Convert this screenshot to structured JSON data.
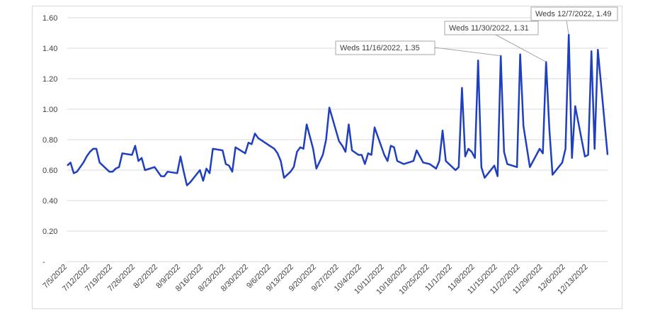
{
  "chart_data": {
    "type": "line",
    "line_color": "#1f3fbf",
    "grid": true,
    "grid_color": "#d9d9d9",
    "ylim": [
      0,
      1.6
    ],
    "yticks": [
      {
        "value": 0,
        "label": "-"
      },
      {
        "value": 0.2,
        "label": "0.20"
      },
      {
        "value": 0.4,
        "label": "0.40"
      },
      {
        "value": 0.6,
        "label": "0.60"
      },
      {
        "value": 0.8,
        "label": "0.80"
      },
      {
        "value": 1.0,
        "label": "1.00"
      },
      {
        "value": 1.2,
        "label": "1.20"
      },
      {
        "value": 1.4,
        "label": "1.40"
      },
      {
        "value": 1.6,
        "label": "1.60"
      }
    ],
    "xlim": [
      "2022-07-05",
      "2022-12-19"
    ],
    "xticks": [
      {
        "date": "2022-07-05",
        "label": "7/5/2022"
      },
      {
        "date": "2022-07-12",
        "label": "7/12/2022"
      },
      {
        "date": "2022-07-19",
        "label": "7/19/2022"
      },
      {
        "date": "2022-07-26",
        "label": "7/26/2022"
      },
      {
        "date": "2022-08-02",
        "label": "8/2/2022"
      },
      {
        "date": "2022-08-09",
        "label": "8/9/2022"
      },
      {
        "date": "2022-08-16",
        "label": "8/16/2022"
      },
      {
        "date": "2022-08-23",
        "label": "8/23/2022"
      },
      {
        "date": "2022-08-30",
        "label": "8/30/2022"
      },
      {
        "date": "2022-09-06",
        "label": "9/6/2022"
      },
      {
        "date": "2022-09-13",
        "label": "9/13/2022"
      },
      {
        "date": "2022-09-20",
        "label": "9/20/2022"
      },
      {
        "date": "2022-09-27",
        "label": "9/27/2022"
      },
      {
        "date": "2022-10-04",
        "label": "10/4/2022"
      },
      {
        "date": "2022-10-11",
        "label": "10/11/2022"
      },
      {
        "date": "2022-10-18",
        "label": "10/18/2022"
      },
      {
        "date": "2022-10-25",
        "label": "10/25/2022"
      },
      {
        "date": "2022-11-01",
        "label": "11/1/2022"
      },
      {
        "date": "2022-11-08",
        "label": "11/8/2022"
      },
      {
        "date": "2022-11-15",
        "label": "11/15/2022"
      },
      {
        "date": "2022-11-22",
        "label": "11/22/2022"
      },
      {
        "date": "2022-11-29",
        "label": "11/29/2022"
      },
      {
        "date": "2022-12-06",
        "label": "12/6/2022"
      },
      {
        "date": "2022-12-13",
        "label": "12/13/2022"
      }
    ],
    "series": [
      {
        "points": [
          [
            "2022-07-05",
            0.63
          ],
          [
            "2022-07-06",
            0.65
          ],
          [
            "2022-07-07",
            0.58
          ],
          [
            "2022-07-08",
            0.59
          ],
          [
            "2022-07-10",
            0.65
          ],
          [
            "2022-07-11",
            0.69
          ],
          [
            "2022-07-12",
            0.72
          ],
          [
            "2022-07-13",
            0.74
          ],
          [
            "2022-07-14",
            0.74
          ],
          [
            "2022-07-15",
            0.65
          ],
          [
            "2022-07-18",
            0.59
          ],
          [
            "2022-07-19",
            0.59
          ],
          [
            "2022-07-20",
            0.61
          ],
          [
            "2022-07-21",
            0.62
          ],
          [
            "2022-07-22",
            0.71
          ],
          [
            "2022-07-25",
            0.7
          ],
          [
            "2022-07-26",
            0.76
          ],
          [
            "2022-07-27",
            0.66
          ],
          [
            "2022-07-28",
            0.68
          ],
          [
            "2022-07-29",
            0.6
          ],
          [
            "2022-08-01",
            0.62
          ],
          [
            "2022-08-02",
            0.59
          ],
          [
            "2022-08-03",
            0.56
          ],
          [
            "2022-08-04",
            0.56
          ],
          [
            "2022-08-05",
            0.59
          ],
          [
            "2022-08-08",
            0.58
          ],
          [
            "2022-08-09",
            0.69
          ],
          [
            "2022-08-10",
            0.59
          ],
          [
            "2022-08-11",
            0.5
          ],
          [
            "2022-08-12",
            0.52
          ],
          [
            "2022-08-15",
            0.6
          ],
          [
            "2022-08-16",
            0.53
          ],
          [
            "2022-08-17",
            0.61
          ],
          [
            "2022-08-18",
            0.58
          ],
          [
            "2022-08-19",
            0.74
          ],
          [
            "2022-08-22",
            0.73
          ],
          [
            "2022-08-23",
            0.64
          ],
          [
            "2022-08-24",
            0.63
          ],
          [
            "2022-08-25",
            0.59
          ],
          [
            "2022-08-26",
            0.75
          ],
          [
            "2022-08-29",
            0.71
          ],
          [
            "2022-08-30",
            0.78
          ],
          [
            "2022-08-31",
            0.77
          ],
          [
            "2022-09-01",
            0.84
          ],
          [
            "2022-09-02",
            0.81
          ],
          [
            "2022-09-07",
            0.74
          ],
          [
            "2022-09-08",
            0.71
          ],
          [
            "2022-09-09",
            0.66
          ],
          [
            "2022-09-10",
            0.55
          ],
          [
            "2022-09-12",
            0.59
          ],
          [
            "2022-09-13",
            0.62
          ],
          [
            "2022-09-14",
            0.72
          ],
          [
            "2022-09-15",
            0.75
          ],
          [
            "2022-09-16",
            0.74
          ],
          [
            "2022-09-17",
            0.9
          ],
          [
            "2022-09-19",
            0.74
          ],
          [
            "2022-09-20",
            0.61
          ],
          [
            "2022-09-22",
            0.7
          ],
          [
            "2022-09-23",
            0.8
          ],
          [
            "2022-09-24",
            1.01
          ],
          [
            "2022-09-27",
            0.79
          ],
          [
            "2022-09-28",
            0.76
          ],
          [
            "2022-09-29",
            0.72
          ],
          [
            "2022-09-30",
            0.9
          ],
          [
            "2022-10-01",
            0.73
          ],
          [
            "2022-10-03",
            0.7
          ],
          [
            "2022-10-04",
            0.7
          ],
          [
            "2022-10-05",
            0.64
          ],
          [
            "2022-10-06",
            0.71
          ],
          [
            "2022-10-07",
            0.7
          ],
          [
            "2022-10-08",
            0.88
          ],
          [
            "2022-10-11",
            0.7
          ],
          [
            "2022-10-12",
            0.66
          ],
          [
            "2022-10-13",
            0.76
          ],
          [
            "2022-10-14",
            0.75
          ],
          [
            "2022-10-15",
            0.66
          ],
          [
            "2022-10-17",
            0.64
          ],
          [
            "2022-10-20",
            0.66
          ],
          [
            "2022-10-21",
            0.73
          ],
          [
            "2022-10-23",
            0.65
          ],
          [
            "2022-10-25",
            0.64
          ],
          [
            "2022-10-27",
            0.61
          ],
          [
            "2022-10-28",
            0.66
          ],
          [
            "2022-10-29",
            0.86
          ],
          [
            "2022-10-30",
            0.66
          ],
          [
            "2022-11-01",
            0.62
          ],
          [
            "2022-11-02",
            0.6
          ],
          [
            "2022-11-03",
            0.62
          ],
          [
            "2022-11-04",
            1.14
          ],
          [
            "2022-11-05",
            0.69
          ],
          [
            "2022-11-06",
            0.74
          ],
          [
            "2022-11-07",
            0.72
          ],
          [
            "2022-11-08",
            0.68
          ],
          [
            "2022-11-09",
            1.32
          ],
          [
            "2022-11-10",
            0.62
          ],
          [
            "2022-11-11",
            0.55
          ],
          [
            "2022-11-14",
            0.63
          ],
          [
            "2022-11-15",
            0.56
          ],
          [
            "2022-11-16",
            1.35
          ],
          [
            "2022-11-17",
            0.72
          ],
          [
            "2022-11-18",
            0.64
          ],
          [
            "2022-11-21",
            0.62
          ],
          [
            "2022-11-22",
            1.36
          ],
          [
            "2022-11-23",
            0.89
          ],
          [
            "2022-11-25",
            0.62
          ],
          [
            "2022-11-28",
            0.74
          ],
          [
            "2022-11-29",
            0.71
          ],
          [
            "2022-11-30",
            1.31
          ],
          [
            "2022-12-01",
            0.87
          ],
          [
            "2022-12-02",
            0.57
          ],
          [
            "2022-12-05",
            0.65
          ],
          [
            "2022-12-06",
            0.74
          ],
          [
            "2022-12-07",
            1.49
          ],
          [
            "2022-12-08",
            0.68
          ],
          [
            "2022-12-09",
            1.02
          ],
          [
            "2022-12-12",
            0.69
          ],
          [
            "2022-12-13",
            0.7
          ],
          [
            "2022-12-14",
            1.38
          ],
          [
            "2022-12-15",
            0.74
          ],
          [
            "2022-12-16",
            1.39
          ],
          [
            "2022-12-19",
            0.7
          ]
        ]
      }
    ],
    "annotations": [
      {
        "date": "2022-11-16",
        "value": 1.35,
        "text": "Weds 11/16/2022,  1.35"
      },
      {
        "date": "2022-11-30",
        "value": 1.31,
        "text": "Weds 11/30/2022,  1.31"
      },
      {
        "date": "2022-12-07",
        "value": 1.49,
        "text": "Weds 12/7/2022, 1.49"
      }
    ]
  }
}
